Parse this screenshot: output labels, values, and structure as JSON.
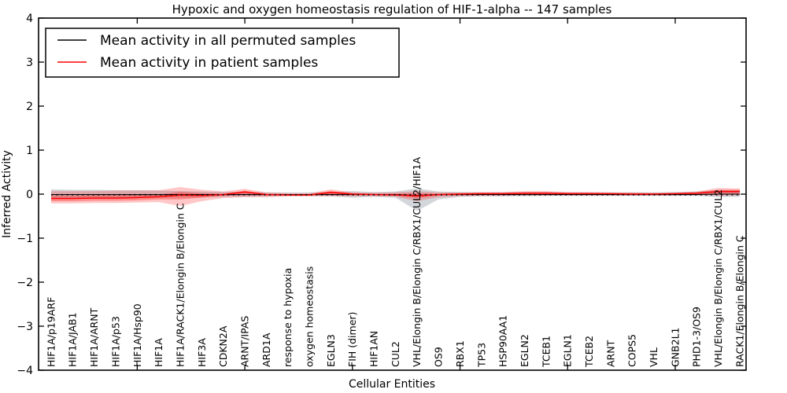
{
  "chart_data": {
    "type": "line",
    "title": "Hypoxic and oxygen homeostasis regulation of HIF-1-alpha -- 147 samples",
    "xlabel": "Cellular Entities",
    "ylabel": "Inferred Activity",
    "ylim": [
      -4,
      4
    ],
    "yticks": [
      -4,
      -3,
      -2,
      -1,
      0,
      1,
      2,
      3,
      4
    ],
    "xticks_values": [
      5,
      10,
      15,
      20,
      25,
      30
    ],
    "grid": false,
    "legend_position": "upper left",
    "legend": [
      {
        "label": "Mean activity in all permuted samples",
        "color": "#000000"
      },
      {
        "label": "Mean activity in patient samples",
        "color": "#ff0000"
      }
    ],
    "categories": [
      "HIF1A/p19ARF",
      "HIF1A/JAB1",
      "HIF1A/ARNT",
      "HIF1A/p53",
      "HIF1A/Hsp90",
      "HIF1A",
      "HIF1A/RACK1/Elongin B/Elongin C",
      "HIF3A",
      "CDKN2A",
      "ARNT/IPAS",
      "ARD1A",
      "response to hypoxia",
      "oxygen homeostasis",
      "EGLN3",
      "FIH (dimer)",
      "HIF1AN",
      "CUL2",
      "VHL/Elongin B/Elongin C/RBX1/CUL2/HIF1A",
      "OS9",
      "RBX1",
      "TP53",
      "HSP90AA1",
      "EGLN2",
      "TCEB1",
      "EGLN1",
      "TCEB2",
      "ARNT",
      "COPS5",
      "VHL",
      "GNB2L1",
      "PHD1-3/OS9",
      "VHL/Elongin B/Elongin C/RBX1/CUL2",
      "RACK1/Elongin B/Elongin C"
    ],
    "series": [
      {
        "name": "Mean activity in all permuted samples",
        "color": "#000000",
        "style": "solid",
        "values": [
          -0.01,
          -0.01,
          -0.01,
          -0.01,
          -0.01,
          -0.01,
          -0.01,
          -0.01,
          -0.01,
          -0.01,
          -0.01,
          -0.01,
          -0.01,
          -0.01,
          -0.01,
          -0.01,
          -0.01,
          -0.03,
          -0.01,
          -0.01,
          -0.01,
          -0.01,
          -0.01,
          -0.01,
          -0.01,
          -0.01,
          -0.01,
          -0.01,
          -0.01,
          -0.01,
          -0.01,
          0.0,
          0.0
        ]
      },
      {
        "name": "Mean activity in patient samples",
        "color": "#ff0000",
        "style": "solid",
        "values": [
          -0.1,
          -0.1,
          -0.09,
          -0.09,
          -0.08,
          -0.06,
          -0.02,
          -0.03,
          -0.01,
          0.05,
          -0.01,
          -0.02,
          -0.02,
          0.04,
          0.0,
          -0.01,
          -0.02,
          -0.04,
          -0.01,
          0.0,
          0.01,
          0.01,
          0.02,
          0.02,
          0.01,
          0.01,
          0.01,
          0.0,
          0.0,
          0.01,
          0.02,
          0.06,
          0.06
        ]
      }
    ],
    "bands": [
      {
        "name": "permuted-sample-range",
        "color": "#8c96a0",
        "opacity": 0.38,
        "upper": [
          0.11,
          0.1,
          0.1,
          0.09,
          0.09,
          0.08,
          0.07,
          0.06,
          0.05,
          0.05,
          0.04,
          0.04,
          0.04,
          0.05,
          0.07,
          0.05,
          0.06,
          0.13,
          0.06,
          0.05,
          0.04,
          0.04,
          0.05,
          0.05,
          0.04,
          0.04,
          0.04,
          0.04,
          0.04,
          0.05,
          0.06,
          0.09,
          0.09
        ],
        "lower": [
          -0.11,
          -0.1,
          -0.1,
          -0.09,
          -0.09,
          -0.08,
          -0.08,
          -0.07,
          -0.06,
          -0.06,
          -0.05,
          -0.04,
          -0.04,
          -0.05,
          -0.08,
          -0.06,
          -0.08,
          -0.38,
          -0.12,
          -0.06,
          -0.05,
          -0.05,
          -0.05,
          -0.04,
          -0.04,
          -0.04,
          -0.04,
          -0.04,
          -0.04,
          -0.04,
          -0.04,
          -0.07,
          -0.06
        ]
      },
      {
        "name": "patient-sample-range-outer",
        "color": "#ff0000",
        "opacity": 0.22,
        "upper": [
          0.07,
          0.07,
          0.07,
          0.08,
          0.08,
          0.09,
          0.16,
          0.1,
          0.06,
          0.12,
          0.04,
          0.02,
          0.02,
          0.11,
          0.04,
          0.03,
          0.04,
          0.07,
          0.04,
          0.04,
          0.05,
          0.05,
          0.07,
          0.07,
          0.05,
          0.05,
          0.04,
          0.04,
          0.03,
          0.04,
          0.06,
          0.14,
          0.13
        ],
        "lower": [
          -0.21,
          -0.21,
          -0.2,
          -0.2,
          -0.19,
          -0.18,
          -0.27,
          -0.16,
          -0.09,
          -0.07,
          -0.07,
          -0.05,
          -0.05,
          -0.05,
          -0.05,
          -0.05,
          -0.06,
          -0.16,
          -0.07,
          -0.05,
          -0.04,
          -0.04,
          -0.03,
          -0.03,
          -0.03,
          -0.03,
          -0.03,
          -0.03,
          -0.03,
          -0.03,
          -0.02,
          -0.04,
          -0.03
        ]
      },
      {
        "name": "patient-sample-range-inner",
        "color": "#ff0000",
        "opacity": 0.3,
        "upper": [
          -0.04,
          -0.04,
          -0.03,
          -0.03,
          -0.02,
          -0.01,
          0.05,
          0.02,
          0.01,
          0.08,
          0.01,
          0.0,
          0.0,
          0.07,
          0.02,
          0.01,
          0.01,
          0.02,
          0.01,
          0.02,
          0.03,
          0.03,
          0.04,
          0.04,
          0.03,
          0.03,
          0.02,
          0.02,
          0.02,
          0.02,
          0.04,
          0.1,
          0.1
        ],
        "lower": [
          -0.16,
          -0.16,
          -0.15,
          -0.15,
          -0.14,
          -0.12,
          -0.12,
          -0.08,
          -0.04,
          -0.01,
          -0.03,
          -0.03,
          -0.03,
          -0.01,
          -0.02,
          -0.02,
          -0.03,
          -0.09,
          -0.03,
          -0.02,
          -0.01,
          -0.01,
          -0.01,
          -0.01,
          -0.01,
          -0.01,
          -0.01,
          -0.01,
          -0.01,
          -0.01,
          0.0,
          0.02,
          0.02
        ]
      }
    ],
    "zero_line": {
      "value": 0,
      "style": "dotted",
      "color": "#000000"
    }
  }
}
